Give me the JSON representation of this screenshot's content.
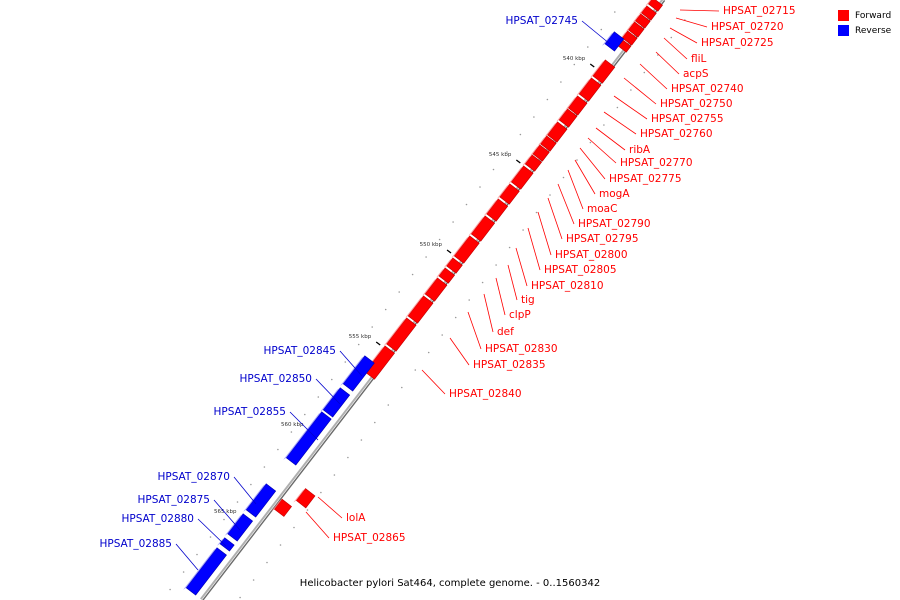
{
  "legend": {
    "forward": {
      "label": "Forward",
      "color": "#ff0000"
    },
    "reverse": {
      "label": "Reverse",
      "color": "#0000ff"
    }
  },
  "caption": "Helicobacter pylori Sat464, complete genome. - 0..1560342",
  "scale_labels": [
    "540 kbp",
    "545 kbp",
    "550 kbp",
    "555 kbp",
    "560 kbp",
    "565 kbp"
  ],
  "forward_genes": [
    "HPSAT_02715",
    "HPSAT_02720",
    "HPSAT_02725",
    "fliL",
    "acpS",
    "HPSAT_02740",
    "HPSAT_02750",
    "HPSAT_02755",
    "HPSAT_02760",
    "ribA",
    "HPSAT_02770",
    "HPSAT_02775",
    "mogA",
    "moaC",
    "HPSAT_02790",
    "HPSAT_02795",
    "HPSAT_02800",
    "HPSAT_02805",
    "HPSAT_02810",
    "tig",
    "clpP",
    "def",
    "HPSAT_02830",
    "HPSAT_02835",
    "HPSAT_02840",
    "lolA",
    "HPSAT_02865"
  ],
  "reverse_genes": [
    "HPSAT_02745",
    "HPSAT_02845",
    "HPSAT_02850",
    "HPSAT_02855",
    "HPSAT_02870",
    "HPSAT_02875",
    "HPSAT_02880",
    "HPSAT_02885"
  ],
  "colors": {
    "forward": "#ff0000",
    "reverse": "#0000ff",
    "backbone": "#808080"
  }
}
